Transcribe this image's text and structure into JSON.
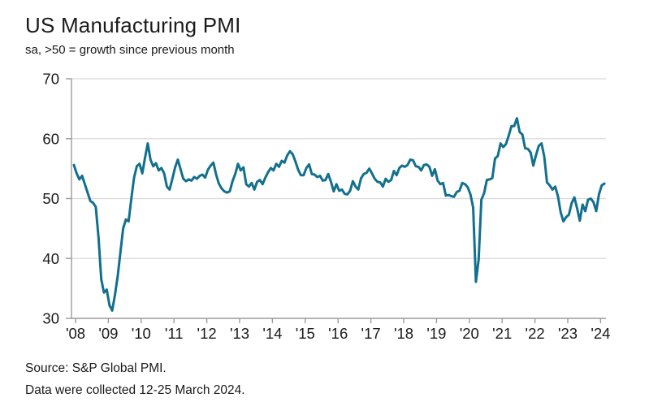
{
  "header": {
    "title": "US Manufacturing PMI",
    "subtitle": "sa, >50 = growth since previous month"
  },
  "footer": {
    "source": "Source: S&P Global PMI.",
    "note": "Data were collected 12-25 March 2024."
  },
  "colors": {
    "line": "#12708e",
    "grid": "#d9d9d9",
    "axis": "#9b9b9b",
    "text": "#1a1a1a",
    "background": "#ffffff"
  },
  "chart_data": {
    "type": "line",
    "title": "US Manufacturing PMI",
    "subtitle": "sa, >50 = growth since previous month",
    "x_frequency": "monthly",
    "x_start": "2008-01",
    "x_end": "2024-03",
    "x_tick_labels": [
      "'08",
      "'09",
      "'10",
      "'11",
      "'12",
      "'13",
      "'14",
      "'15",
      "'16",
      "'17",
      "'18",
      "'19",
      "'20",
      "'21",
      "'22",
      "'23",
      "'24"
    ],
    "ylim": [
      30,
      70
    ],
    "y_ticks": [
      30,
      40,
      50,
      60,
      70
    ],
    "grid": "horizontal",
    "legend": "none",
    "series": [
      {
        "name": "US Manufacturing PMI (sa)",
        "color": "#12708e",
        "values": [
          55.6,
          54.2,
          53.2,
          53.8,
          52.4,
          51.0,
          49.6,
          49.3,
          48.6,
          43.5,
          36.5,
          34.3,
          34.8,
          32.2,
          31.3,
          33.9,
          37.0,
          41.0,
          45.0,
          46.5,
          46.2,
          50.0,
          53.5,
          55.4,
          55.8,
          54.2,
          56.8,
          59.2,
          56.5,
          55.4,
          55.9,
          54.7,
          55.1,
          54.2,
          52.0,
          51.5,
          53.3,
          55.2,
          56.5,
          54.9,
          53.3,
          52.9,
          53.2,
          53.0,
          53.6,
          53.3,
          53.8,
          54.0,
          53.5,
          54.8,
          55.5,
          56.0,
          54.0,
          52.5,
          51.7,
          51.2,
          51.0,
          51.2,
          52.9,
          54.1,
          55.8,
          54.7,
          55.2,
          52.4,
          52.0,
          52.6,
          51.5,
          52.8,
          53.1,
          52.4,
          53.5,
          54.4,
          55.1,
          54.7,
          55.8,
          55.3,
          56.3,
          56.0,
          57.2,
          57.9,
          57.4,
          56.2,
          54.8,
          53.9,
          53.9,
          55.1,
          55.7,
          54.1,
          54.0,
          53.6,
          53.8,
          53.0,
          53.1,
          54.1,
          52.8,
          51.2,
          52.4,
          51.3,
          51.5,
          50.8,
          50.7,
          51.3,
          52.9,
          52.0,
          51.5,
          53.4,
          54.1,
          54.3,
          55.0,
          54.2,
          53.3,
          52.8,
          52.7,
          52.0,
          53.3,
          52.8,
          53.1,
          54.6,
          53.9,
          55.1,
          55.5,
          55.3,
          55.6,
          56.5,
          56.4,
          55.4,
          55.3,
          54.7,
          55.6,
          55.7,
          55.3,
          53.8,
          54.9,
          53.0,
          52.4,
          52.6,
          50.5,
          50.6,
          50.4,
          50.3,
          51.1,
          51.3,
          52.6,
          52.4,
          51.9,
          50.7,
          48.5,
          36.1,
          39.8,
          49.8,
          50.9,
          53.1,
          53.2,
          53.4,
          56.7,
          57.1,
          59.2,
          58.6,
          59.1,
          60.5,
          62.1,
          62.1,
          63.4,
          61.1,
          60.7,
          58.4,
          58.3,
          57.7,
          55.5,
          57.3,
          58.8,
          59.2,
          57.0,
          52.7,
          52.2,
          51.5,
          52.0,
          50.4,
          47.7,
          46.2,
          46.9,
          47.3,
          49.2,
          50.2,
          48.4,
          46.3,
          49.0,
          47.9,
          49.8,
          50.0,
          49.4,
          47.9,
          50.7,
          52.2,
          52.5
        ]
      }
    ]
  }
}
